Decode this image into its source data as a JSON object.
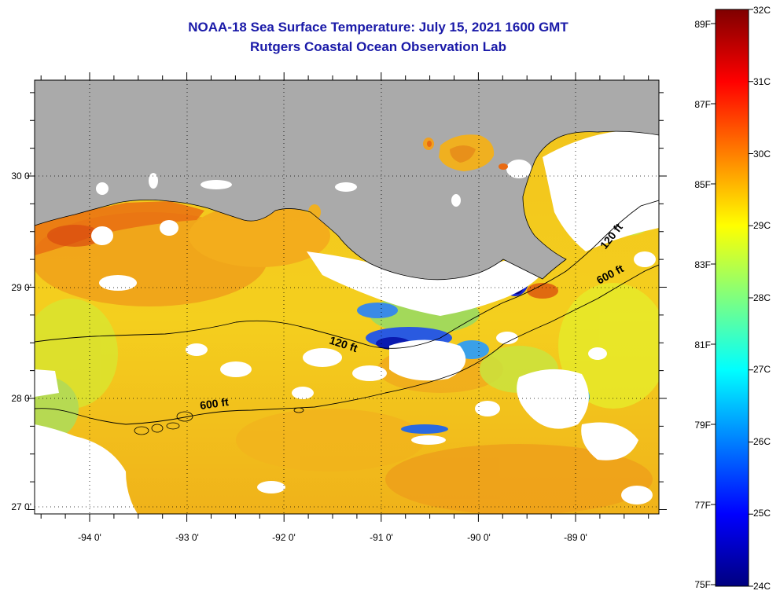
{
  "title": "NOAA-18 Sea Surface Temperature:  July 15, 2021 1600 GMT",
  "subtitle": "Rutgers Coastal Ocean Observation Lab",
  "map": {
    "lon_labels": [
      "-94 0'",
      "-93 0'",
      "-92 0'",
      "-91 0'",
      "-90 0'",
      "-89 0'"
    ],
    "lat_labels": [
      "30 0'",
      "29 0'",
      "28 0'",
      "27 0'"
    ],
    "contour_labels": [
      "120 ft",
      "600 ft",
      "120 ft",
      "600 ft"
    ]
  },
  "colorbar": {
    "celsius_labels": [
      "32C",
      "31C",
      "30C",
      "29C",
      "28C",
      "27C",
      "26C",
      "25C",
      "24C"
    ],
    "fahrenheit_labels": [
      "89F",
      "87F",
      "85F",
      "83F",
      "81F",
      "79F",
      "77F",
      "75F"
    ],
    "colors": [
      "#00007f",
      "#0000ff",
      "#007fff",
      "#00ffff",
      "#7fff7f",
      "#ffff00",
      "#ff7f00",
      "#ff0000",
      "#7f0000"
    ]
  },
  "colors": {
    "title": "#1a1aa8",
    "land": "#aaaaaa",
    "cloud_no_data": "#ffffff"
  }
}
